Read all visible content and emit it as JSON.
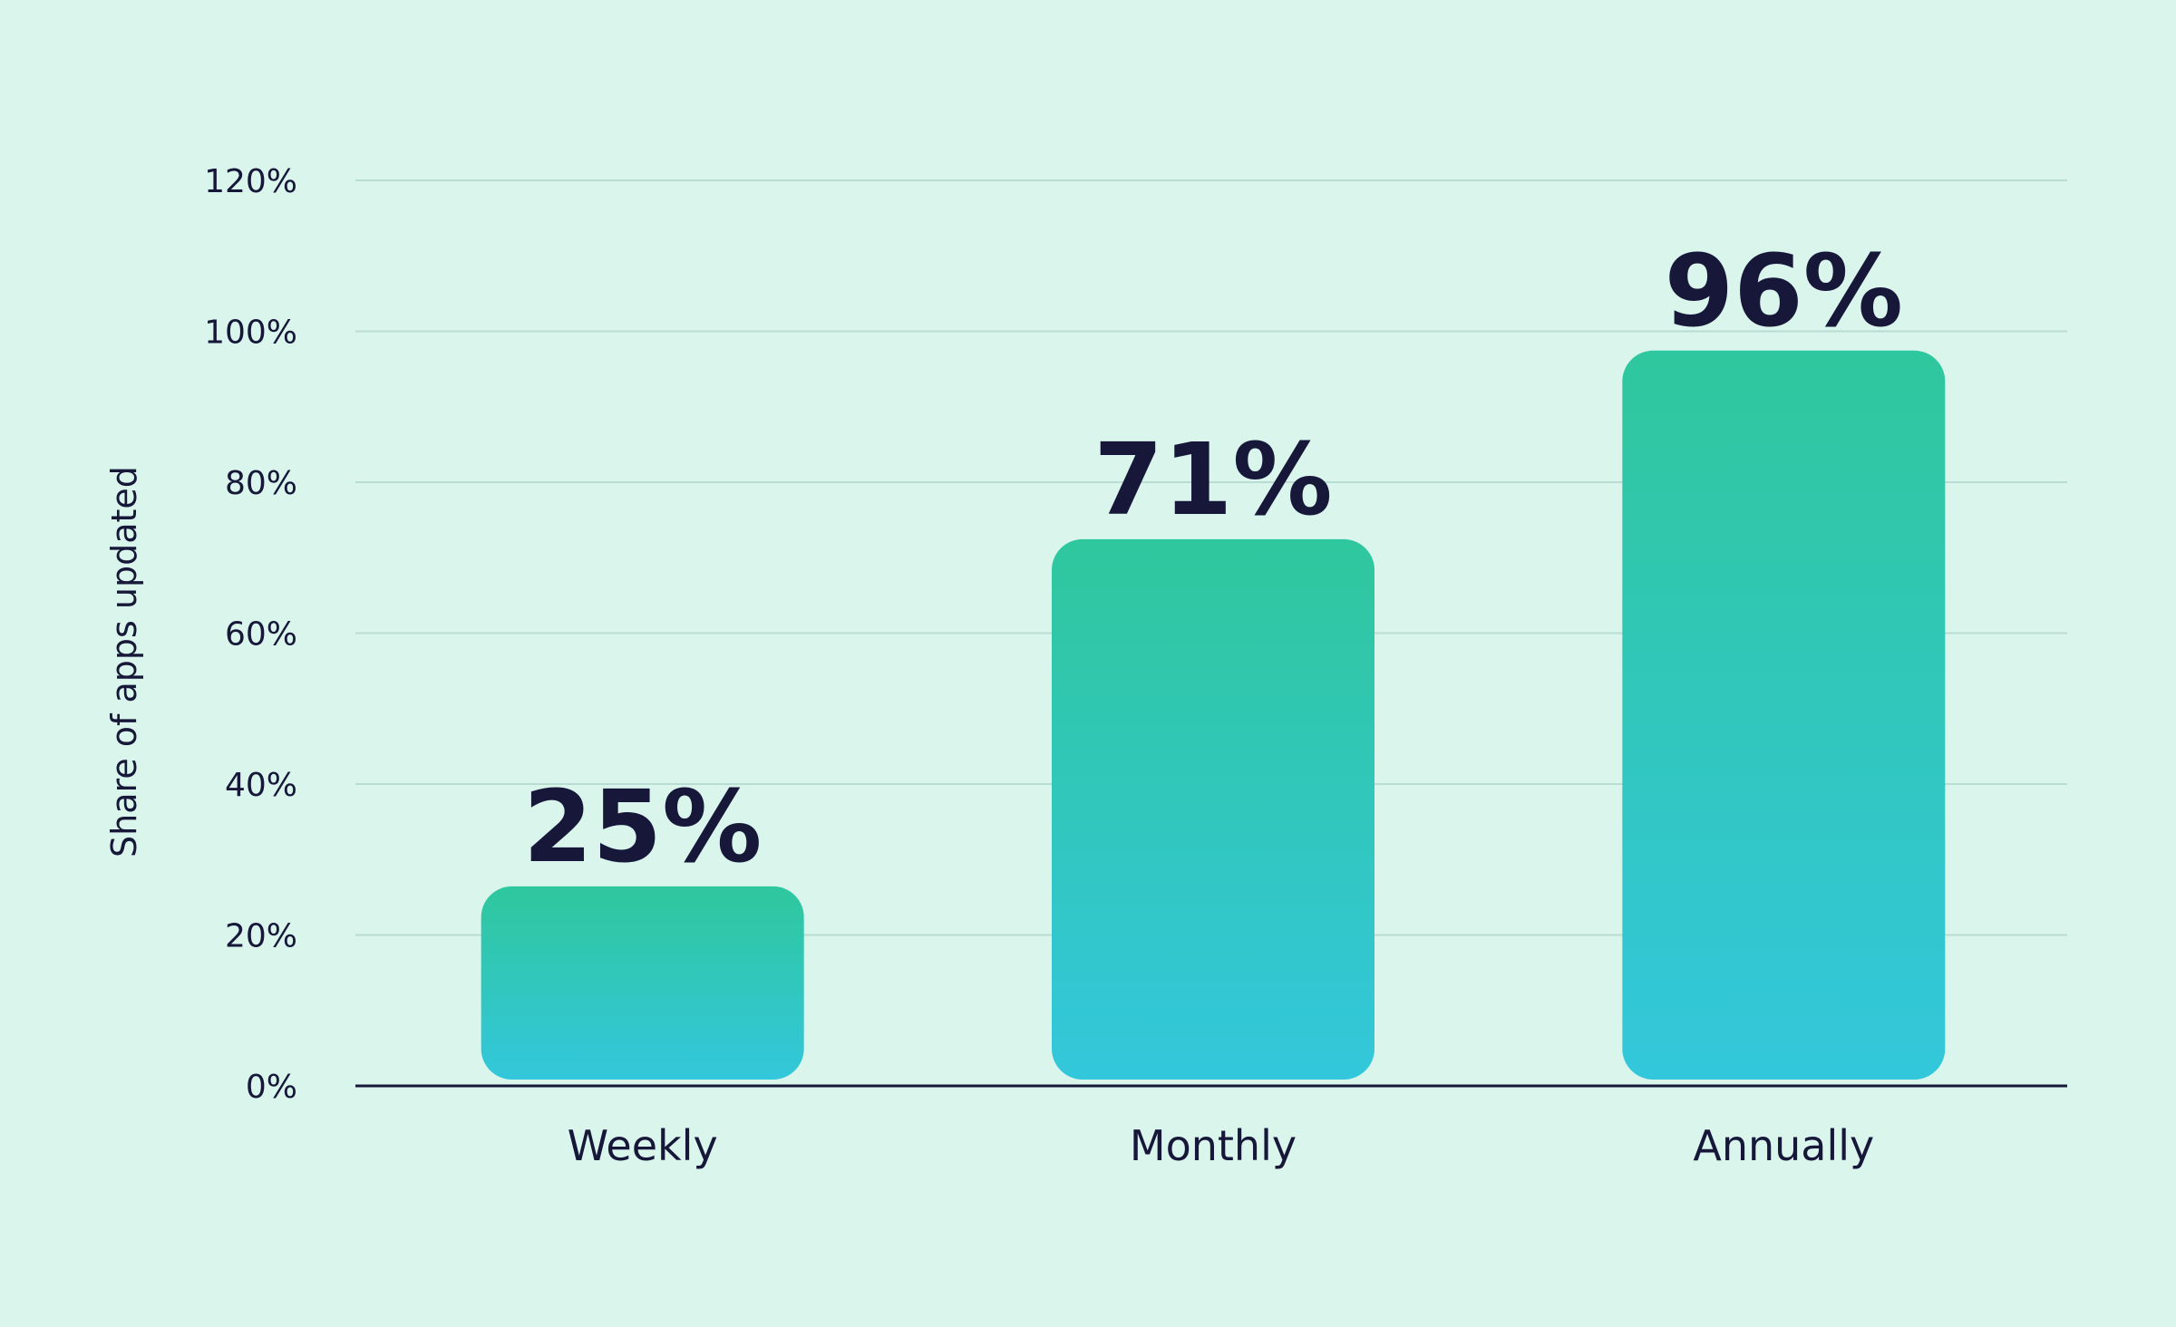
{
  "chart_data": {
    "type": "bar",
    "categories": [
      "Weekly",
      "Monthly",
      "Annually"
    ],
    "values": [
      25,
      71,
      96
    ],
    "value_labels": [
      "25%",
      "71%",
      "96%"
    ],
    "ylabel": "Share of apps updated",
    "xlabel": "",
    "ylim": [
      0,
      120
    ],
    "yticks": [
      0,
      20,
      40,
      60,
      80,
      100,
      120
    ],
    "ytick_labels": [
      "0%",
      "20%",
      "40%",
      "60%",
      "80%",
      "100%",
      "120%"
    ],
    "grid": true,
    "legend": "none",
    "colors": {
      "background": "#d9f5ec",
      "bar_top": "#2fc79d",
      "bar_bottom": "#33c7dc",
      "text": "#17173a",
      "gridline": "#b9dcd3",
      "axis": "#17173a"
    }
  }
}
